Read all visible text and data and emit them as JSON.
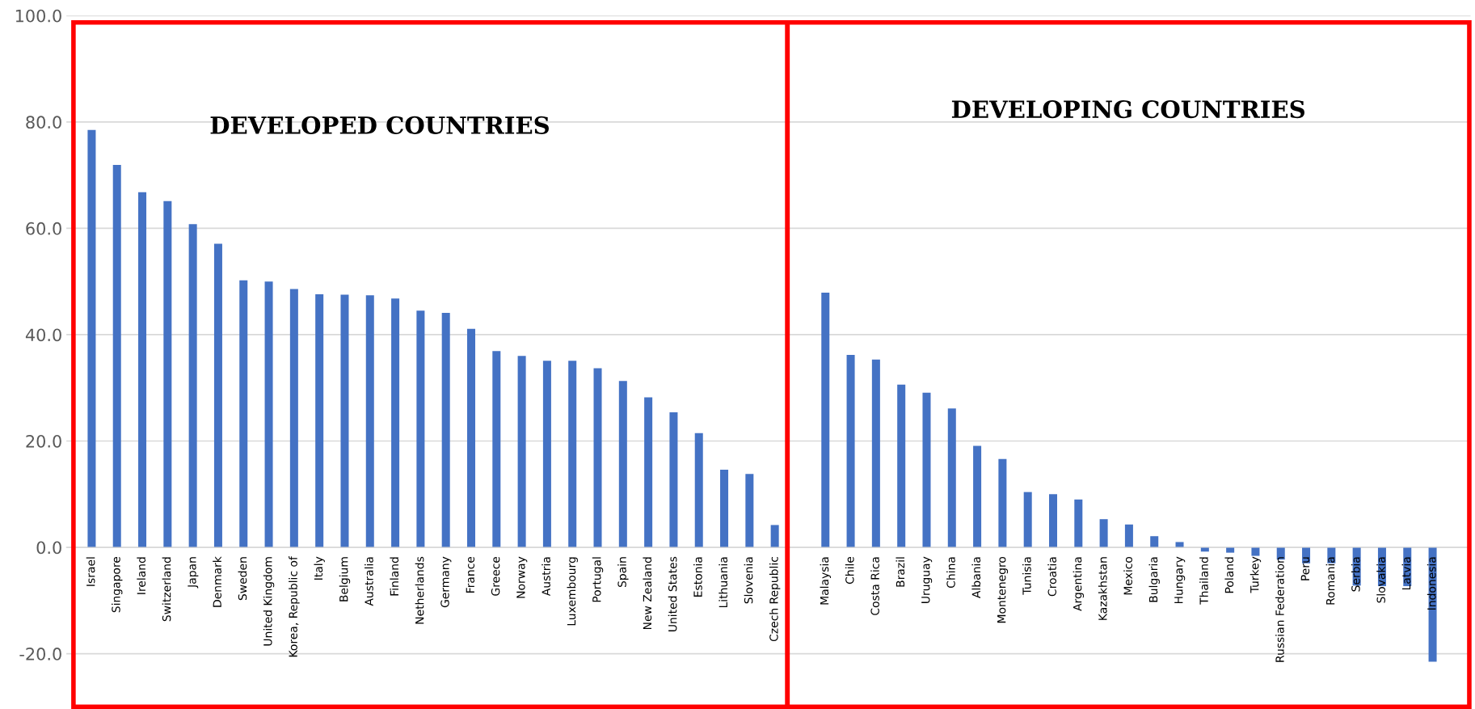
{
  "chart_data": {
    "type": "bar",
    "categories": [
      "Israel",
      "Singapore",
      "Ireland",
      "Switzerland",
      "Japan",
      "Denmark",
      "Sweden",
      "United Kingdom",
      "Korea, Republic of",
      "Italy",
      "Belgium",
      "Australia",
      "Finland",
      "Netherlands",
      "Germany",
      "France",
      "Greece",
      "Norway",
      "Austria",
      "Luxembourg",
      "Portugal",
      "Spain",
      "New Zealand",
      "United States",
      "Estonia",
      "Lithuania",
      "Slovenia",
      "Czech Republic",
      null,
      "Malaysia",
      "Chile",
      "Costa Rica",
      "Brazil",
      "Uruguay",
      "China",
      "Albania",
      "Montenegro",
      "Tunisia",
      "Croatia",
      "Argentina",
      "Kazakhstan",
      "Mexico",
      "Bulgaria",
      "Hungary",
      "Thailand",
      "Poland",
      "Turkey",
      "Russian Federation",
      "Peru",
      "Romania",
      "Serbia",
      "Slovakia",
      "Latvia",
      "Indonesia"
    ],
    "values": [
      78.5,
      71.9,
      66.8,
      65.1,
      60.8,
      57.1,
      50.2,
      50.0,
      48.6,
      47.6,
      47.5,
      47.4,
      46.8,
      44.5,
      44.1,
      41.1,
      36.9,
      36.0,
      35.1,
      35.1,
      33.7,
      31.3,
      28.2,
      25.4,
      21.5,
      14.6,
      13.8,
      4.2,
      null,
      47.9,
      36.2,
      35.3,
      30.6,
      29.1,
      26.1,
      19.1,
      16.6,
      10.4,
      10.0,
      9.0,
      5.3,
      4.3,
      2.1,
      1.0,
      -0.8,
      -1.0,
      -1.6,
      -2.3,
      -3.0,
      -3.0,
      -7.2,
      -7.3,
      -7.3,
      -21.5
    ],
    "color": "#4472c4",
    "ylim": [
      -30,
      100
    ],
    "yticks": [
      {
        "value": -20,
        "label": "-20.0"
      },
      {
        "value": 0,
        "label": "0.0"
      },
      {
        "value": 20,
        "label": "20.0"
      },
      {
        "value": 40,
        "label": "40.0"
      },
      {
        "value": 60,
        "label": "60.0"
      },
      {
        "value": 80,
        "label": "80.0"
      },
      {
        "value": 100,
        "label": "100.0"
      }
    ],
    "grid": "y",
    "annotations": [
      "DEVELOPED COUNTRIES",
      "DEVELOPING COUNTRIES"
    ]
  }
}
